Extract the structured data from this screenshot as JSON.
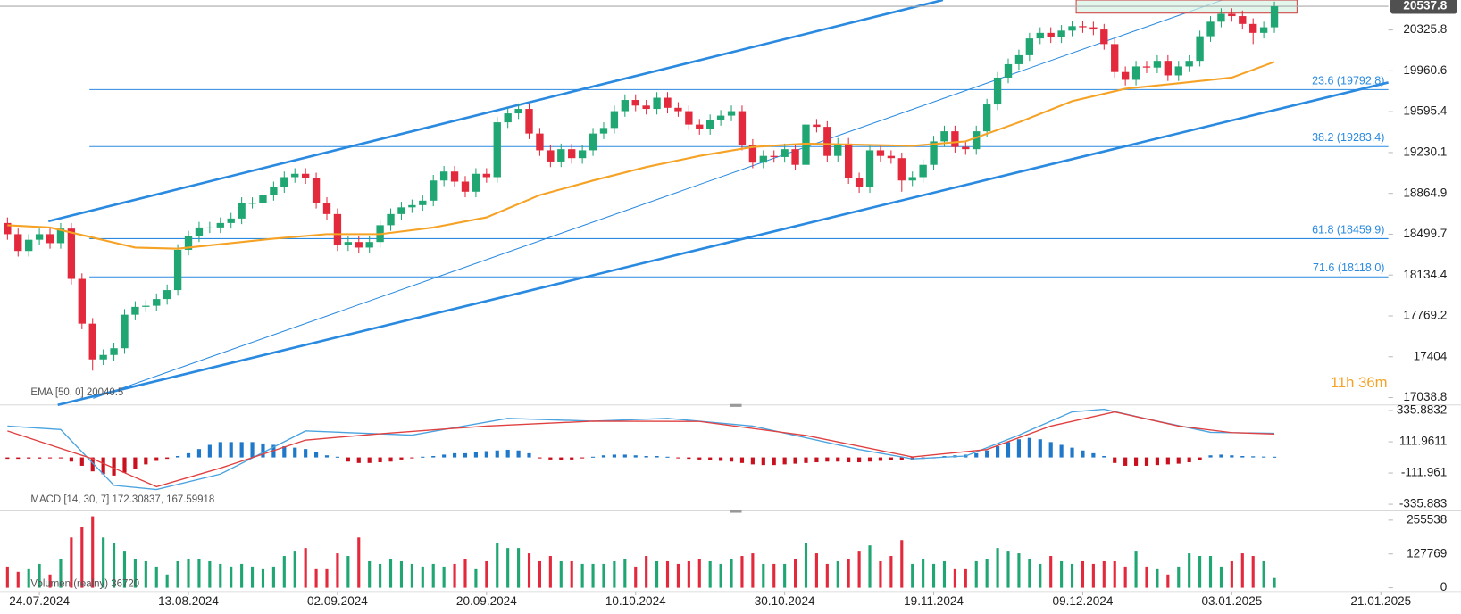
{
  "chart_data": [
    {
      "type": "candlestick",
      "open": [
        18600,
        18500,
        18350,
        18450,
        18500,
        18420,
        18550,
        18100,
        17700,
        17380,
        17420,
        17480,
        17780,
        17850,
        17860,
        17920,
        18000,
        18360,
        18480,
        18560,
        18560,
        18600,
        18640,
        18780,
        18780,
        18850,
        18920,
        19010,
        19040,
        19000,
        18780,
        18680,
        18400,
        18430,
        18380,
        18430,
        18580,
        18680,
        18740,
        18760,
        18800,
        18980,
        19060,
        18970,
        18880,
        19040,
        19010,
        19500,
        19580,
        19620,
        19400,
        19250,
        19150,
        19260,
        19180,
        19250,
        19400,
        19450,
        19600,
        19700,
        19650,
        19620,
        19720,
        19630,
        19600,
        19480,
        19440,
        19520,
        19560,
        19600,
        19300,
        19140,
        19200,
        19190,
        19260,
        19120,
        19480,
        19460,
        19200,
        19310,
        19000,
        18920,
        19250,
        19200,
        19180,
        18980,
        19010,
        19120,
        19330,
        19420,
        19280,
        19260,
        19420,
        19660,
        19900,
        20020,
        20100,
        20250,
        20300,
        20260,
        20320,
        20360,
        20350,
        20330,
        20200,
        19950,
        19880,
        20000,
        19990,
        20050,
        19920,
        20000,
        20050,
        20270,
        20400,
        20470,
        20450,
        20380,
        20300,
        20350
      ],
      "high": [
        18650,
        18550,
        18500,
        18550,
        18550,
        18600,
        18600,
        18150,
        17750,
        17470,
        17530,
        17830,
        17900,
        17910,
        17970,
        18050,
        18410,
        18530,
        18610,
        18610,
        18650,
        18690,
        18830,
        18830,
        18900,
        18970,
        19060,
        19090,
        19090,
        19050,
        18830,
        18730,
        18480,
        18480,
        18480,
        18630,
        18730,
        18790,
        18810,
        18850,
        19030,
        19110,
        19110,
        19020,
        19090,
        19090,
        19550,
        19630,
        19670,
        19670,
        19450,
        19300,
        19310,
        19310,
        19300,
        19450,
        19500,
        19650,
        19750,
        19750,
        19700,
        19770,
        19770,
        19680,
        19650,
        19530,
        19570,
        19610,
        19650,
        19650,
        19350,
        19250,
        19250,
        19310,
        19310,
        19530,
        19530,
        19510,
        19360,
        19360,
        19050,
        19300,
        19300,
        19250,
        19230,
        19060,
        19170,
        19380,
        19470,
        19470,
        19330,
        19470,
        19710,
        19950,
        20070,
        20150,
        20300,
        20350,
        20350,
        20370,
        20410,
        20410,
        20400,
        20380,
        20250,
        20000,
        20050,
        20050,
        20100,
        20100,
        20050,
        20100,
        20320,
        20450,
        20520,
        20520,
        20500,
        20430,
        20400,
        20580
      ],
      "low": [
        18450,
        18300,
        18300,
        18400,
        18370,
        18370,
        18050,
        17650,
        17280,
        17330,
        17370,
        17430,
        17730,
        17800,
        17810,
        17870,
        17950,
        18310,
        18430,
        18510,
        18510,
        18550,
        18590,
        18730,
        18730,
        18800,
        18870,
        18960,
        18950,
        18730,
        18630,
        18350,
        18350,
        18330,
        18330,
        18380,
        18530,
        18630,
        18690,
        18710,
        18750,
        18930,
        18920,
        18830,
        18830,
        18960,
        18960,
        19450,
        19530,
        19350,
        19200,
        19100,
        19100,
        19130,
        19130,
        19200,
        19350,
        19400,
        19550,
        19600,
        19570,
        19570,
        19580,
        19550,
        19430,
        19390,
        19390,
        19470,
        19510,
        19250,
        19090,
        19090,
        19140,
        19140,
        19070,
        19070,
        19410,
        19150,
        19150,
        18950,
        18870,
        18870,
        19150,
        19130,
        18880,
        18930,
        18960,
        19070,
        19280,
        19230,
        19210,
        19210,
        19370,
        19610,
        19850,
        19970,
        20050,
        20200,
        20210,
        20210,
        20270,
        20300,
        20280,
        20150,
        19900,
        19830,
        19830,
        19940,
        19940,
        19870,
        19870,
        19950,
        20000,
        20220,
        20350,
        20400,
        20330,
        20200,
        20250,
        20300
      ],
      "close": [
        18500,
        18350,
        18450,
        18500,
        18420,
        18550,
        18100,
        17700,
        17380,
        17420,
        17480,
        17780,
        17850,
        17860,
        17920,
        18000,
        18360,
        18480,
        18560,
        18560,
        18600,
        18640,
        18780,
        18780,
        18850,
        18920,
        19010,
        19040,
        19000,
        18780,
        18680,
        18400,
        18430,
        18380,
        18430,
        18580,
        18680,
        18740,
        18760,
        18800,
        18980,
        19060,
        18970,
        18880,
        19040,
        19010,
        19500,
        19580,
        19620,
        19400,
        19250,
        19150,
        19260,
        19180,
        19250,
        19400,
        19450,
        19600,
        19700,
        19650,
        19620,
        19720,
        19630,
        19600,
        19480,
        19440,
        19520,
        19560,
        19600,
        19300,
        19140,
        19200,
        19190,
        19260,
        19120,
        19480,
        19460,
        19200,
        19310,
        19000,
        18920,
        19250,
        19200,
        19180,
        18980,
        19010,
        19120,
        19330,
        19420,
        19280,
        19260,
        19420,
        19660,
        19900,
        20020,
        20100,
        20250,
        20300,
        20260,
        20320,
        20360,
        20350,
        20330,
        20200,
        19950,
        19880,
        20000,
        19990,
        20050,
        19920,
        20000,
        20050,
        20270,
        20400,
        20470,
        20450,
        20380,
        20300,
        20350,
        20537.8
      ],
      "up_color": "#1fa672",
      "down_color": "#e3293c",
      "last_price_color": "#505050",
      "ylim": [
        16973,
        20594
      ],
      "yticks": [
        20325.8,
        19960.6,
        19595.4,
        19230.1,
        18864.9,
        18499.7,
        18134.4,
        17769.2,
        17404.0,
        17038.8
      ],
      "xlim": [
        -0.7,
        129.7
      ],
      "xticks": [
        {
          "value": 3,
          "label": "24.07.2024"
        },
        {
          "value": 17,
          "label": "13.08.2024"
        },
        {
          "value": 31,
          "label": "02.09.2024"
        },
        {
          "value": 45,
          "label": "20.09.2024"
        },
        {
          "value": 59,
          "label": "10.10.2024"
        },
        {
          "value": 73,
          "label": "30.10.2024"
        },
        {
          "value": 87,
          "label": "19.11.2024"
        },
        {
          "value": 101,
          "label": "09.12.2024"
        },
        {
          "value": 115,
          "label": "03.01.2025"
        },
        {
          "value": 129,
          "label": "21.01.2025"
        }
      ],
      "ema": {
        "name": "EMA [50, 0]",
        "color": "#f5a225",
        "x": [
          0,
          4,
          8,
          12,
          16,
          20,
          25,
          30,
          35,
          40,
          45,
          50,
          55,
          60,
          65,
          70,
          75,
          80,
          85,
          90,
          95,
          100,
          105,
          110,
          115,
          119
        ],
        "values": [
          18580,
          18560,
          18470,
          18380,
          18370,
          18410,
          18460,
          18500,
          18500,
          18560,
          18650,
          18850,
          18980,
          19100,
          19200,
          19280,
          19310,
          19300,
          19290,
          19330,
          19500,
          19690,
          19800,
          19850,
          19900,
          20040.5
        ]
      },
      "fibonacci": [
        {
          "value": 19792.8,
          "label": "23.6 (19792.8)"
        },
        {
          "value": 19283.4,
          "label": "38.2 (19283.4)"
        },
        {
          "value": 18459.9,
          "label": "61.8 (18459.9)"
        },
        {
          "value": 18118.0,
          "label": "71.6 (18118.0)"
        }
      ],
      "timer": "11h 36m"
    },
    {
      "type": "macd",
      "legend": "MACD [14, 30, 7]",
      "histogram": [
        -10,
        -10,
        -8,
        -8,
        -6,
        -5,
        -30,
        -60,
        -100,
        -120,
        -130,
        -110,
        -80,
        -50,
        -25,
        -10,
        10,
        30,
        60,
        90,
        110,
        110,
        110,
        110,
        100,
        90,
        80,
        70,
        60,
        40,
        15,
        5,
        -30,
        -40,
        -40,
        -35,
        -30,
        -15,
        -5,
        5,
        10,
        20,
        30,
        30,
        40,
        45,
        50,
        55,
        50,
        30,
        -5,
        -15,
        -20,
        -15,
        -5,
        5,
        15,
        20,
        20,
        15,
        10,
        10,
        5,
        -5,
        -10,
        -15,
        -20,
        -25,
        -30,
        -40,
        -50,
        -55,
        -55,
        -50,
        -45,
        -40,
        -35,
        -30,
        -30,
        -35,
        -35,
        -30,
        -25,
        -20,
        -20,
        -15,
        -10,
        -5,
        10,
        15,
        20,
        30,
        50,
        80,
        110,
        130,
        140,
        130,
        110,
        90,
        70,
        50,
        30,
        10,
        -40,
        -60,
        -60,
        -60,
        -55,
        -50,
        -45,
        -35,
        -20,
        15,
        20,
        15,
        10,
        8,
        6,
        5
      ],
      "up_color": "#1f78c8",
      "down_color": "#c8101e",
      "macd": {
        "color": "#4aa3df",
        "x": [
          0,
          5,
          10,
          14,
          20,
          28,
          38,
          47,
          55,
          62,
          70,
          80,
          85,
          90,
          95,
          100,
          103,
          108,
          113,
          119
        ],
        "values": [
          225,
          200,
          -200,
          -230,
          -120,
          190,
          160,
          280,
          260,
          280,
          225,
          57,
          -10,
          10,
          160,
          326,
          345,
          260,
          180,
          172.30837
        ]
      },
      "signal": {
        "color": "#e04040",
        "x": [
          0,
          8,
          14,
          20,
          28,
          35,
          45,
          55,
          65,
          75,
          85,
          92,
          98,
          104,
          110,
          115,
          119
        ],
        "values": [
          190,
          -10,
          -210,
          -77,
          124,
          170,
          225,
          260,
          258,
          158,
          3,
          57,
          225,
          326,
          225,
          178,
          167.59918
        ]
      },
      "ylim": [
        -383,
        376
      ],
      "yticks": [
        335.8832,
        111.9611,
        -111.961,
        -335.883
      ]
    },
    {
      "type": "volume",
      "legend": "Volumen (realny)",
      "values": [
        80000,
        60000,
        70000,
        90000,
        50000,
        110000,
        190000,
        230000,
        270000,
        190000,
        170000,
        140000,
        110000,
        100000,
        80000,
        50000,
        100000,
        110000,
        110000,
        100000,
        90000,
        80000,
        90000,
        80000,
        70000,
        80000,
        120000,
        140000,
        150000,
        70000,
        70000,
        130000,
        120000,
        190000,
        100000,
        90000,
        110000,
        100000,
        90000,
        80000,
        90000,
        80000,
        90000,
        110000,
        70000,
        100000,
        170000,
        150000,
        150000,
        130000,
        100000,
        120000,
        100000,
        100000,
        90000,
        90000,
        90000,
        100000,
        110000,
        80000,
        120000,
        100000,
        100000,
        90000,
        100000,
        110000,
        100000,
        90000,
        110000,
        120000,
        130000,
        90000,
        90000,
        90000,
        110000,
        170000,
        130000,
        90000,
        100000,
        110000,
        140000,
        160000,
        100000,
        120000,
        180000,
        90000,
        110000,
        90000,
        100000,
        70000,
        70000,
        100000,
        110000,
        150000,
        140000,
        130000,
        110000,
        90000,
        120000,
        100000,
        90000,
        100000,
        90000,
        100000,
        100000,
        80000,
        140000,
        80000,
        70000,
        50000,
        80000,
        130000,
        120000,
        120000,
        80000,
        100000,
        130000,
        120000,
        100000,
        36720
      ],
      "ylim": [
        0,
        280000
      ],
      "yticks": [
        0,
        127769,
        255538
      ]
    }
  ]
}
